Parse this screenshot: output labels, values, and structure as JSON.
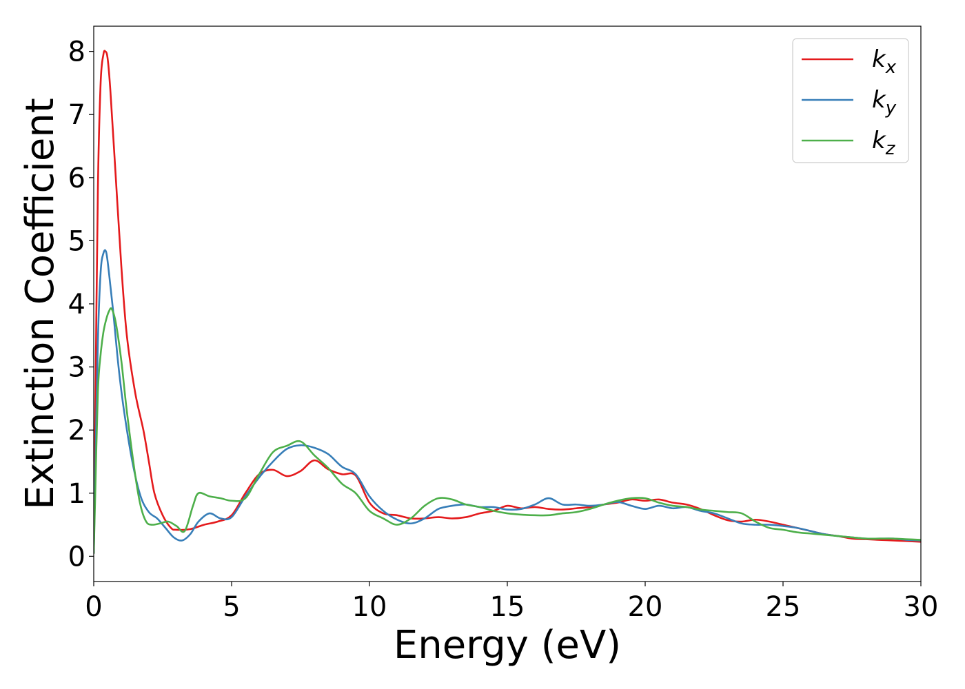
{
  "chart_data": {
    "type": "line",
    "title": "",
    "xlabel": "Energy (eV)",
    "ylabel": "Extinction Coefficient",
    "xlim": [
      0,
      30
    ],
    "ylim": [
      -0.4,
      8.4
    ],
    "xticks": [
      0,
      5,
      10,
      15,
      20,
      25,
      30
    ],
    "xtick_labels": [
      "0",
      "5",
      "10",
      "15",
      "20",
      "25",
      "30"
    ],
    "yticks": [
      0,
      1,
      2,
      3,
      4,
      5,
      6,
      7,
      8
    ],
    "ytick_labels": [
      "0",
      "1",
      "2",
      "3",
      "4",
      "5",
      "6",
      "7",
      "8"
    ],
    "grid": false,
    "legend_position": "top-right",
    "series": [
      {
        "name": "k_x",
        "label_base": "k",
        "label_sub": "x",
        "color": "#e41a1c",
        "x": [
          0,
          0.05,
          0.15,
          0.25,
          0.35,
          0.42,
          0.5,
          0.6,
          0.8,
          1.0,
          1.2,
          1.5,
          1.8,
          2.0,
          2.2,
          2.5,
          2.8,
          3.0,
          3.5,
          4.0,
          4.5,
          5.0,
          5.5,
          6.0,
          6.5,
          7.0,
          7.5,
          8.0,
          8.5,
          9.0,
          9.5,
          10.0,
          10.5,
          11.0,
          11.5,
          12.0,
          12.5,
          13.0,
          13.5,
          14.0,
          14.5,
          15.0,
          15.5,
          16.0,
          16.5,
          17.0,
          17.5,
          18.0,
          18.5,
          19.0,
          19.5,
          20.0,
          20.5,
          21.0,
          21.5,
          22.0,
          22.5,
          23.0,
          23.5,
          24.0,
          24.5,
          25.0,
          25.5,
          26.0,
          26.5,
          27.0,
          27.5,
          28.0,
          28.5,
          29.0,
          29.5,
          30.0
        ],
        "y": [
          0.05,
          2.0,
          5.8,
          7.5,
          7.95,
          8.0,
          7.9,
          7.4,
          6.0,
          4.6,
          3.5,
          2.6,
          2.0,
          1.5,
          1.0,
          0.65,
          0.45,
          0.42,
          0.43,
          0.5,
          0.55,
          0.65,
          1.0,
          1.3,
          1.37,
          1.27,
          1.35,
          1.52,
          1.38,
          1.3,
          1.28,
          0.85,
          0.68,
          0.65,
          0.6,
          0.6,
          0.62,
          0.6,
          0.62,
          0.68,
          0.72,
          0.8,
          0.76,
          0.78,
          0.75,
          0.74,
          0.76,
          0.78,
          0.82,
          0.85,
          0.9,
          0.88,
          0.9,
          0.85,
          0.82,
          0.75,
          0.65,
          0.57,
          0.55,
          0.58,
          0.55,
          0.5,
          0.45,
          0.4,
          0.35,
          0.32,
          0.28,
          0.27,
          0.26,
          0.25,
          0.24,
          0.23
        ]
      },
      {
        "name": "k_y",
        "label_base": "k",
        "label_sub": "y",
        "color": "#377eb8",
        "x": [
          0,
          0.05,
          0.15,
          0.25,
          0.35,
          0.45,
          0.55,
          0.7,
          0.9,
          1.1,
          1.4,
          1.7,
          2.0,
          2.3,
          2.6,
          2.9,
          3.2,
          3.5,
          3.8,
          4.2,
          4.6,
          5.0,
          5.5,
          6.0,
          6.5,
          7.0,
          7.5,
          8.0,
          8.5,
          9.0,
          9.5,
          10.0,
          10.5,
          11.0,
          11.5,
          12.0,
          12.5,
          13.0,
          13.5,
          14.0,
          14.5,
          15.0,
          15.5,
          16.0,
          16.5,
          17.0,
          17.5,
          18.0,
          18.5,
          19.0,
          19.5,
          20.0,
          20.5,
          21.0,
          21.5,
          22.0,
          22.5,
          23.0,
          23.5,
          24.0,
          24.5,
          25.0,
          25.5,
          26.0,
          26.5,
          27.0,
          27.5,
          28.0,
          28.5,
          29.0,
          29.5,
          30.0
        ],
        "y": [
          0.05,
          1.2,
          3.4,
          4.5,
          4.8,
          4.82,
          4.5,
          3.9,
          3.0,
          2.3,
          1.5,
          0.95,
          0.7,
          0.6,
          0.45,
          0.3,
          0.25,
          0.35,
          0.55,
          0.68,
          0.6,
          0.62,
          0.95,
          1.25,
          1.5,
          1.7,
          1.76,
          1.72,
          1.62,
          1.42,
          1.3,
          0.95,
          0.72,
          0.58,
          0.52,
          0.6,
          0.75,
          0.8,
          0.82,
          0.78,
          0.78,
          0.74,
          0.75,
          0.82,
          0.92,
          0.82,
          0.82,
          0.8,
          0.82,
          0.86,
          0.8,
          0.75,
          0.8,
          0.76,
          0.78,
          0.72,
          0.68,
          0.6,
          0.52,
          0.5,
          0.5,
          0.48,
          0.45,
          0.4,
          0.35,
          0.32,
          0.3,
          0.28,
          0.28,
          0.28,
          0.26,
          0.25
        ]
      },
      {
        "name": "k_z",
        "label_base": "k",
        "label_sub": "z",
        "color": "#4daf4a",
        "x": [
          0,
          0.05,
          0.15,
          0.25,
          0.35,
          0.45,
          0.55,
          0.65,
          0.8,
          1.0,
          1.2,
          1.5,
          1.7,
          1.9,
          2.1,
          2.4,
          2.7,
          3.0,
          3.3,
          3.6,
          3.8,
          4.2,
          4.6,
          5.0,
          5.5,
          6.0,
          6.5,
          7.0,
          7.5,
          8.0,
          8.5,
          9.0,
          9.5,
          10.0,
          10.5,
          11.0,
          11.5,
          12.0,
          12.5,
          13.0,
          13.5,
          14.0,
          14.5,
          15.0,
          15.5,
          16.0,
          16.5,
          17.0,
          17.5,
          18.0,
          18.5,
          19.0,
          19.5,
          20.0,
          20.5,
          21.0,
          21.5,
          22.0,
          22.5,
          23.0,
          23.5,
          24.0,
          24.5,
          25.0,
          25.5,
          26.0,
          26.5,
          27.0,
          27.5,
          28.0,
          28.5,
          29.0,
          29.5,
          30.0
        ],
        "y": [
          0.05,
          0.9,
          2.6,
          3.2,
          3.55,
          3.75,
          3.88,
          3.92,
          3.7,
          3.1,
          2.3,
          1.3,
          0.8,
          0.55,
          0.5,
          0.52,
          0.55,
          0.48,
          0.4,
          0.8,
          1.0,
          0.95,
          0.92,
          0.88,
          0.92,
          1.3,
          1.65,
          1.75,
          1.82,
          1.6,
          1.4,
          1.15,
          1.0,
          0.72,
          0.6,
          0.5,
          0.6,
          0.8,
          0.92,
          0.9,
          0.82,
          0.78,
          0.72,
          0.68,
          0.66,
          0.65,
          0.65,
          0.68,
          0.7,
          0.75,
          0.82,
          0.88,
          0.92,
          0.92,
          0.85,
          0.8,
          0.78,
          0.74,
          0.72,
          0.7,
          0.68,
          0.55,
          0.45,
          0.42,
          0.38,
          0.36,
          0.34,
          0.32,
          0.3,
          0.28,
          0.28,
          0.28,
          0.27,
          0.26
        ]
      }
    ]
  }
}
